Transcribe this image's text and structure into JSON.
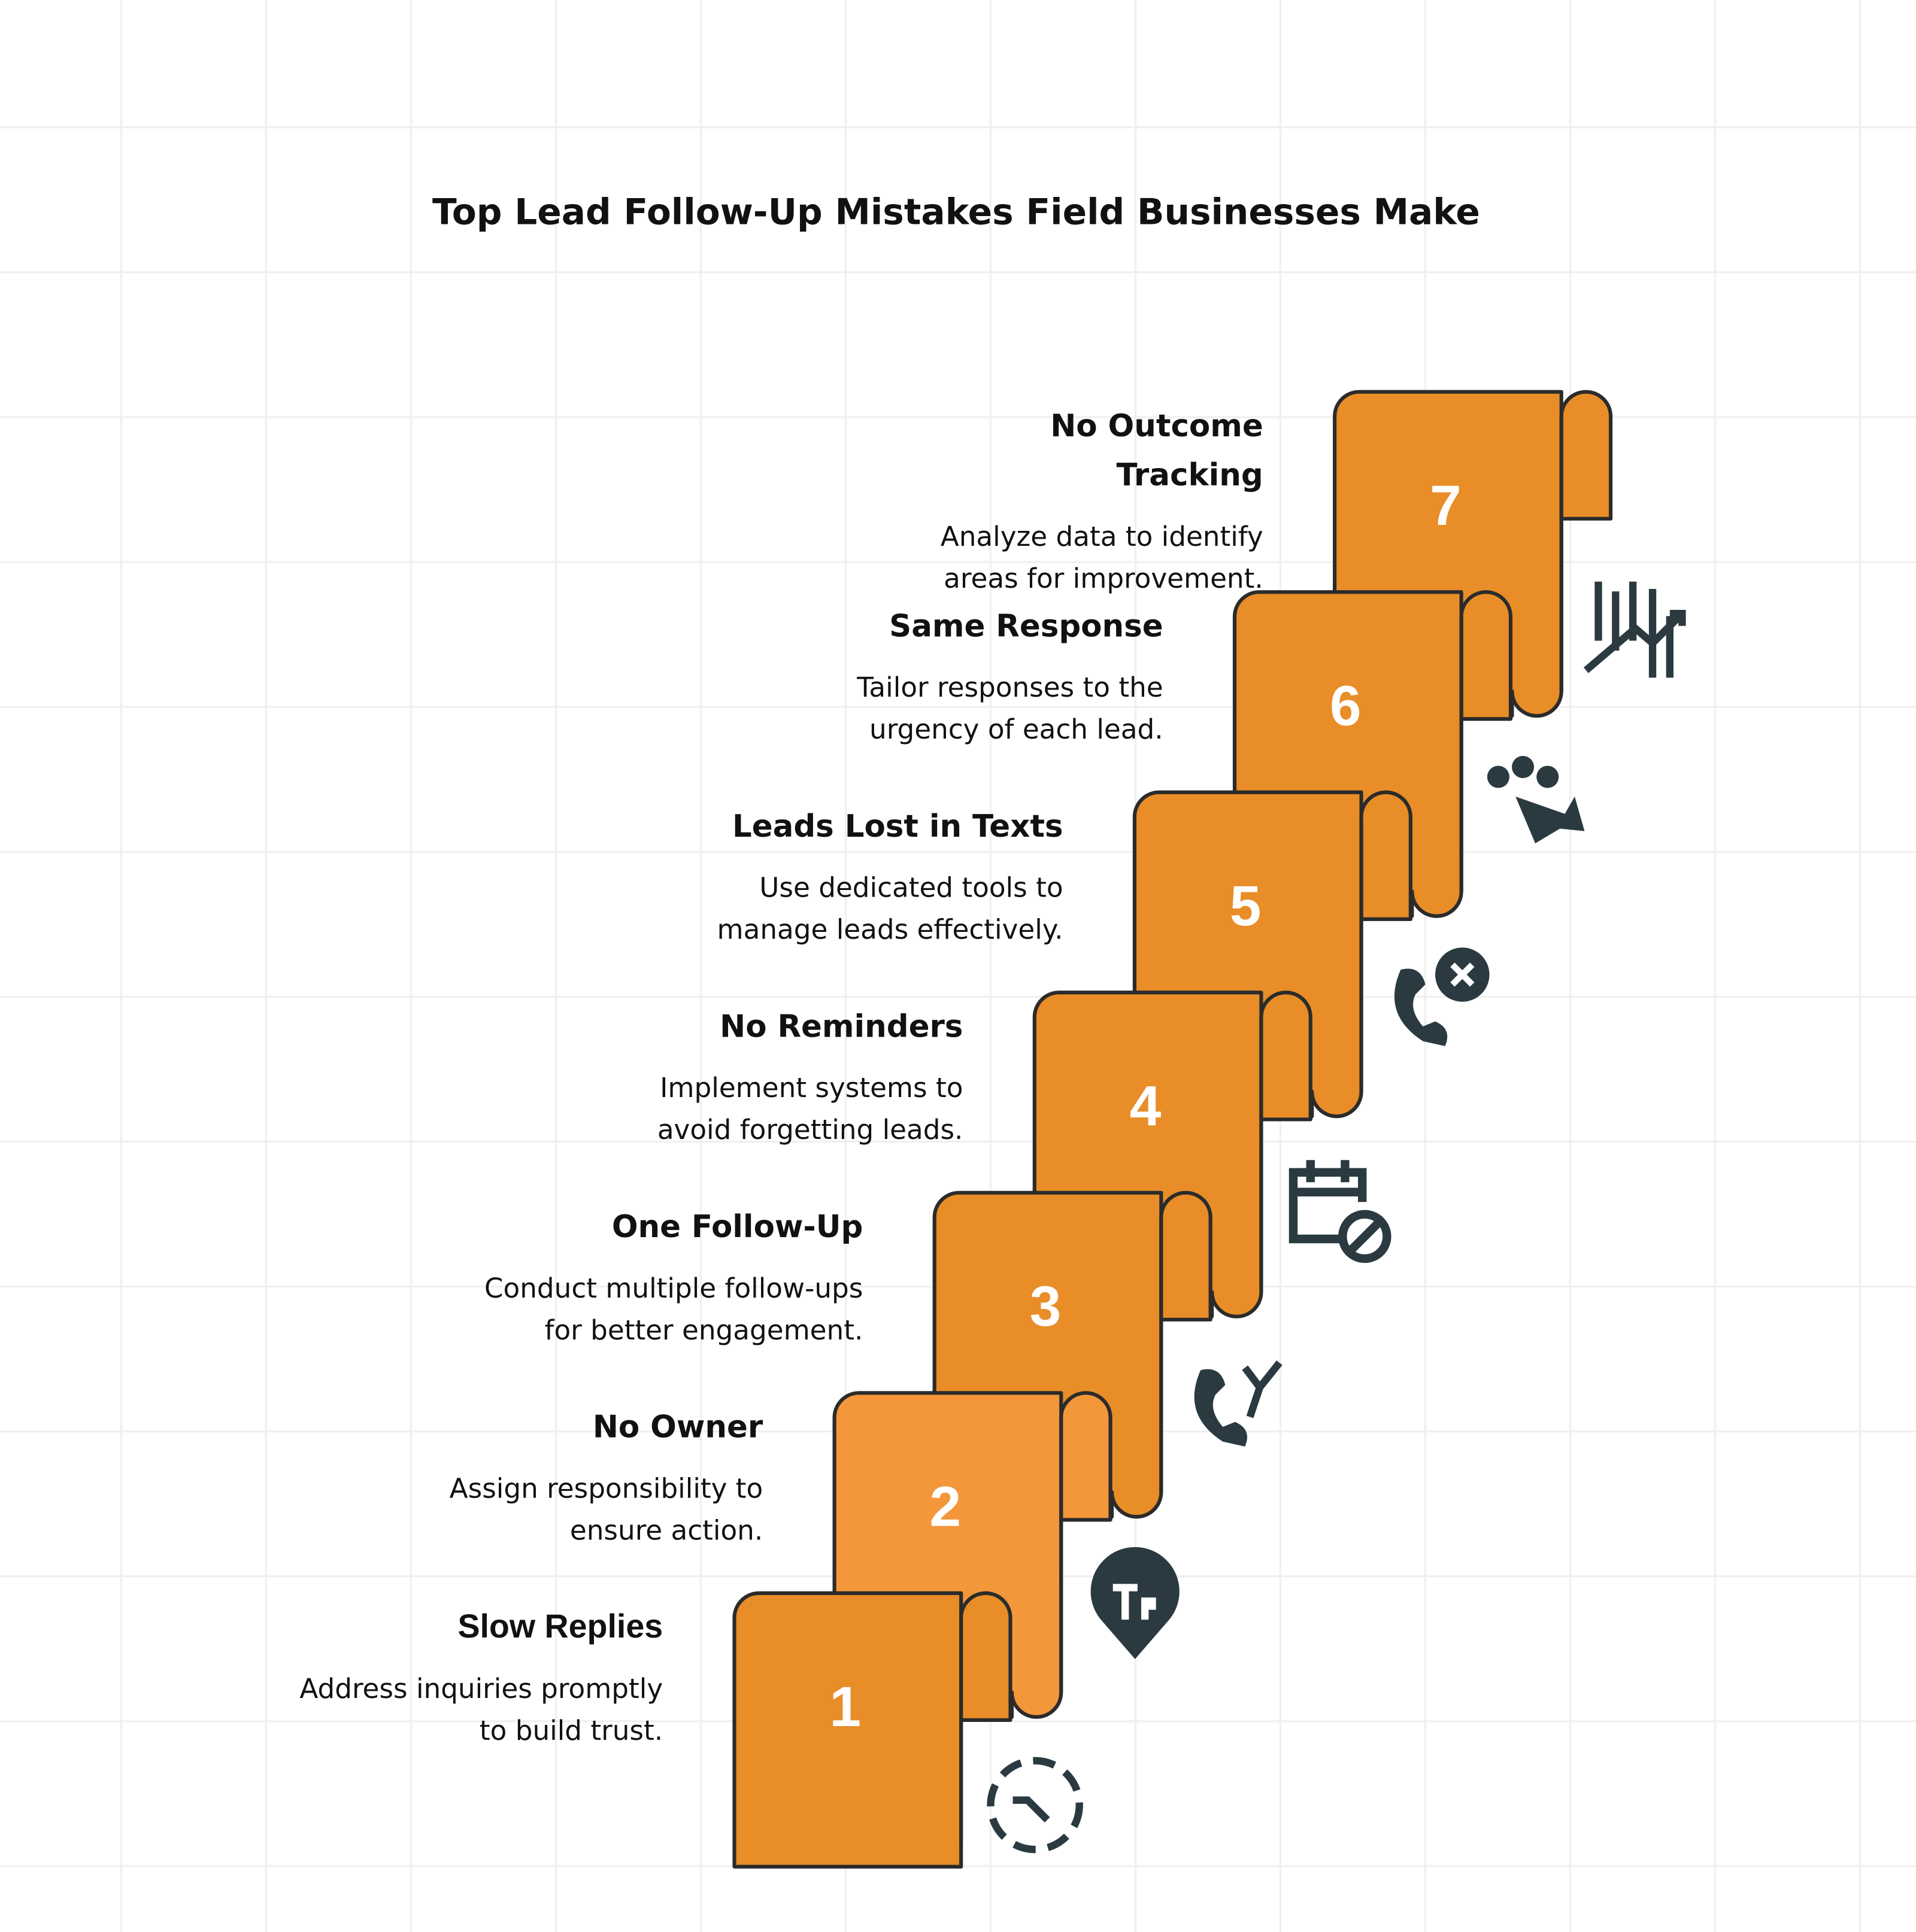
{
  "header": {
    "title": "Top Lead Follow-Up Mistakes Field Businesses Make"
  },
  "steps": [
    {
      "number": "1",
      "title_lines": [
        "Slow Replies"
      ],
      "description_lines": [
        "Address inquiries promptly",
        "to build trust."
      ]
    },
    {
      "number": "2",
      "title_lines": [
        "No Owner"
      ],
      "description_lines": [
        "Assign responsibility to",
        "ensure action."
      ]
    },
    {
      "number": "3",
      "title_lines": [
        "One Follow-Up"
      ],
      "description_lines": [
        "Conduct multiple follow-ups",
        "for better engagement."
      ]
    },
    {
      "number": "4",
      "title_lines": [
        "No Reminders"
      ],
      "description_lines": [
        "Implement systems to",
        "avoid forgetting leads."
      ]
    },
    {
      "number": "5",
      "title_lines": [
        "Leads Lost in Texts"
      ],
      "description_lines": [
        "Use dedicated tools to",
        "manage leads effectively."
      ]
    },
    {
      "number": "6",
      "title_lines": [
        "Same Response"
      ],
      "description_lines": [
        "Tailor responses to the",
        "urgency of each lead."
      ]
    },
    {
      "number": "7",
      "title_lines": [
        "No Outcome",
        "Tracking"
      ],
      "description_lines": [
        "Analyze data to identify",
        "areas for improvement."
      ]
    }
  ]
}
